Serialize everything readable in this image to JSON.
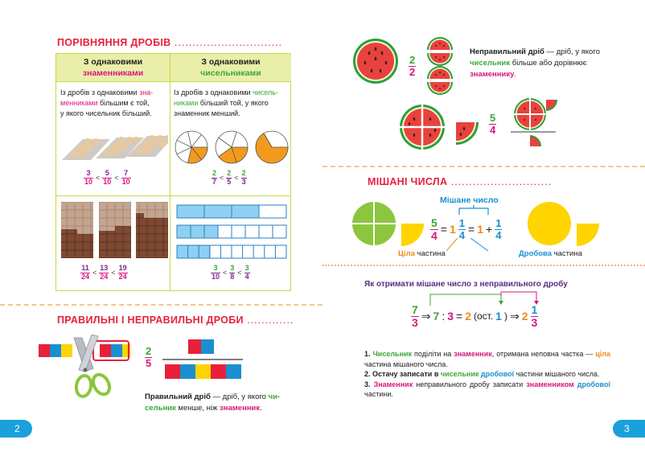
{
  "left": {
    "section1_title": "ПОРІВНЯННЯ ДРОБІВ",
    "col1_header_line1": "З однаковими",
    "col1_header_line2": "знаменниками",
    "col2_header_line1": "З однаковими",
    "col2_header_line2": "чисельниками",
    "col1_text_a": "Із дробів з однаковими ",
    "col1_text_b": "зна-",
    "col1_text_c": "менниками",
    "col1_text_d": " більшим є той,",
    "col1_text_e": "у якого чисельник більший.",
    "col2_text_a": "Із дробів з однаковими ",
    "col2_text_b": "чисель-",
    "col2_text_c": "никами",
    "col2_text_d": " більший той, у якого",
    "col2_text_e": "знаменник менший.",
    "ineq1": [
      {
        "n": "3",
        "d": "10"
      },
      {
        "n": "5",
        "d": "10"
      },
      {
        "n": "7",
        "d": "10"
      }
    ],
    "ineq2": [
      {
        "n": "2",
        "d": "7"
      },
      {
        "n": "2",
        "d": "5"
      },
      {
        "n": "2",
        "d": "3"
      }
    ],
    "ineq3": [
      {
        "n": "11",
        "d": "24"
      },
      {
        "n": "13",
        "d": "24"
      },
      {
        "n": "19",
        "d": "24"
      }
    ],
    "ineq4": [
      {
        "n": "3",
        "d": "10"
      },
      {
        "n": "3",
        "d": "8"
      },
      {
        "n": "3",
        "d": "4"
      }
    ],
    "lt": "<",
    "section2_title": "ПРАВИЛЬНІ І НЕПРАВИЛЬНІ ДРОБИ",
    "proper_frac": {
      "n": "2",
      "d": "5"
    },
    "proper_text_a": "Правильний дріб",
    "proper_text_b": " — дріб, у якого ",
    "proper_text_c": "чи-",
    "proper_text_d": "сельник",
    "proper_text_e": " менше, ніж ",
    "proper_text_f": "знаменник",
    "proper_text_g": ".",
    "page_number": "2"
  },
  "right": {
    "frac22": {
      "n": "2",
      "d": "2"
    },
    "frac54": {
      "n": "5",
      "d": "4"
    },
    "improper_text_a": "Неправильний дріб",
    "improper_text_b": " — дріб, у якого",
    "improper_text_c": "чисельник",
    "improper_text_d": " більше або дорівнює",
    "improper_text_e": "знаменнику",
    "improper_text_f": ".",
    "section3_title": "МІШАНІ ЧИСЛА",
    "mixed_label": "Мішане число",
    "eq_left": {
      "n": "5",
      "d": "4"
    },
    "eq_eq1": "=",
    "eq_whole": "1",
    "eq_mixed_frac": {
      "n": "1",
      "d": "4"
    },
    "eq_eq2": "=",
    "eq_plus_whole": "1",
    "eq_plus": "+",
    "eq_plus_frac": {
      "n": "1",
      "d": "4"
    },
    "whole_label_a": "Ціла",
    "whole_label_b": " частина",
    "frac_label_a": "Дробова",
    "frac_label_b": " частина",
    "how_title": "Як отримати мішане число з неправильного дробу",
    "conv_frac": {
      "n": "7",
      "d": "3"
    },
    "conv_arrow1": "⇒",
    "conv_7": "7",
    "conv_div": ":",
    "conv_3": "3",
    "conv_eq": "=",
    "conv_2": "2",
    "conv_ost_open": " (ост. ",
    "conv_1": "1",
    "conv_ost_close": ")",
    "conv_arrow2": "⇒",
    "conv_res_whole": "2",
    "conv_res_frac": {
      "n": "1",
      "d": "3"
    },
    "step1_a": "1. ",
    "step1_b": "Чисельник",
    "step1_c": " поділіти на ",
    "step1_d": "знаменник",
    "step1_e": ", отримана неповна частка — ",
    "step1_f": "ціла",
    "step1_g": " частина мішаного числа.",
    "step2_a": "2. Остачу записати в ",
    "step2_b": "чисельник",
    "step2_c": " ",
    "step2_d": "дробової",
    "step2_e": " частини мішаного числа.",
    "step3_a": "3. ",
    "step3_b": "Знаменник",
    "step3_c": " неправильного дробу записати ",
    "step3_d": "знаменником",
    "step3_e": " ",
    "step3_f": "дробової",
    "step3_g": " частини.",
    "page_number": "3"
  },
  "colors": {
    "accent_red": "#e8203a",
    "magenta": "#d6177d",
    "green": "#39a935",
    "blue": "#1a8fd0",
    "orange": "#f08a1c",
    "page_tab": "#1aa0dc"
  }
}
